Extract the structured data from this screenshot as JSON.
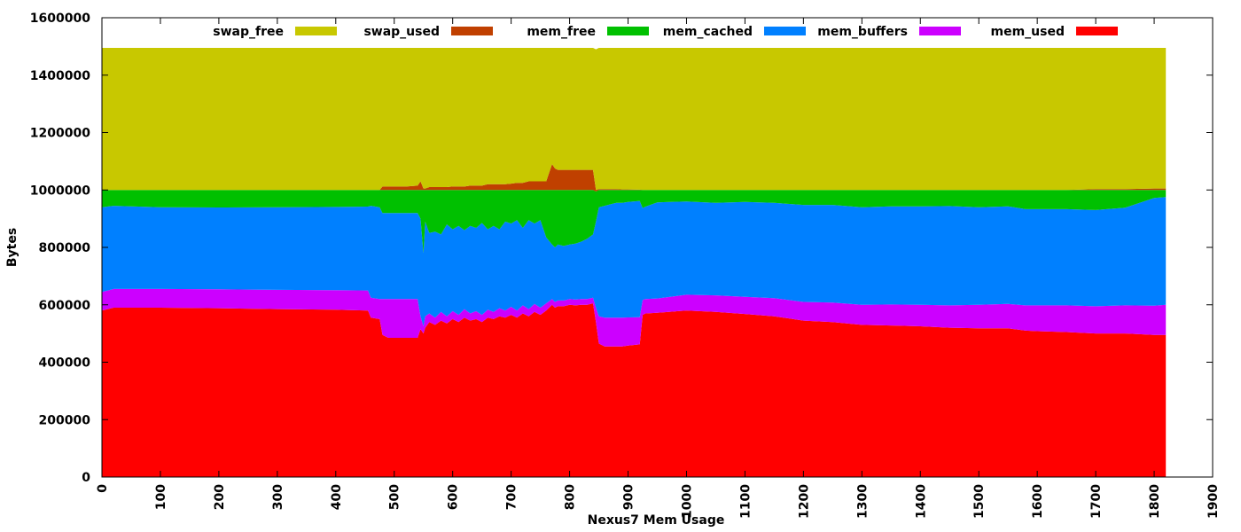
{
  "chart_data": {
    "type": "area",
    "stacked": true,
    "title": "",
    "xlabel": "Nexus7 Mem Usage",
    "ylabel": "Bytes",
    "xlim": [
      0,
      1900
    ],
    "ylim": [
      0,
      1600000
    ],
    "x_ticks": [
      0,
      100,
      200,
      300,
      400,
      500,
      600,
      700,
      800,
      900,
      1000,
      1100,
      1200,
      1300,
      1400,
      1500,
      1600,
      1700,
      1800,
      1900
    ],
    "y_ticks": [
      0,
      200000,
      400000,
      600000,
      800000,
      1000000,
      1200000,
      1400000,
      1600000
    ],
    "grid": false,
    "legend_position": "top",
    "x": [
      0,
      20,
      100,
      200,
      300,
      400,
      455,
      460,
      475,
      480,
      490,
      520,
      540,
      545,
      550,
      553,
      560,
      570,
      580,
      590,
      600,
      610,
      620,
      630,
      640,
      650,
      660,
      670,
      680,
      690,
      700,
      710,
      720,
      730,
      740,
      750,
      760,
      770,
      775,
      780,
      790,
      800,
      810,
      820,
      830,
      840,
      845,
      850,
      860,
      870,
      880,
      890,
      900,
      920,
      925,
      930,
      950,
      1000,
      1050,
      1100,
      1150,
      1200,
      1250,
      1300,
      1350,
      1400,
      1450,
      1500,
      1550,
      1580,
      1600,
      1650,
      1700,
      1750,
      1800,
      1820
    ],
    "series": [
      {
        "name": "mem_used",
        "color": "#ff0000",
        "values": [
          580000,
          590000,
          590000,
          588000,
          585000,
          583000,
          580000,
          555000,
          550000,
          495000,
          485000,
          485000,
          485000,
          515000,
          500000,
          520000,
          540000,
          530000,
          545000,
          535000,
          550000,
          540000,
          555000,
          545000,
          550000,
          540000,
          555000,
          550000,
          560000,
          555000,
          565000,
          555000,
          570000,
          560000,
          575000,
          565000,
          580000,
          600000,
          590000,
          595000,
          595000,
          600000,
          598000,
          600000,
          600000,
          605000,
          540000,
          465000,
          455000,
          455000,
          455000,
          455000,
          458000,
          462000,
          565000,
          570000,
          572000,
          580000,
          575000,
          568000,
          560000,
          545000,
          540000,
          530000,
          528000,
          525000,
          520000,
          518000,
          518000,
          510000,
          508000,
          505000,
          500000,
          500000,
          495000,
          495000
        ]
      },
      {
        "name": "mem_buffers",
        "color": "#cc00ff",
        "values": [
          65000,
          65000,
          65000,
          66000,
          67000,
          68000,
          70000,
          70000,
          70000,
          125000,
          135000,
          135000,
          135000,
          45000,
          25000,
          40000,
          30000,
          25000,
          30000,
          25000,
          28000,
          25000,
          30000,
          25000,
          28000,
          25000,
          28000,
          25000,
          28000,
          25000,
          28000,
          25000,
          28000,
          25000,
          28000,
          25000,
          25000,
          20000,
          20000,
          20000,
          20000,
          20000,
          20000,
          20000,
          20000,
          20000,
          50000,
          95000,
          100000,
          100000,
          100000,
          100000,
          98000,
          95000,
          52000,
          50000,
          50000,
          55000,
          58000,
          60000,
          63000,
          65000,
          68000,
          70000,
          73000,
          75000,
          78000,
          82000,
          85000,
          88000,
          90000,
          93000,
          95000,
          98000,
          102000,
          105000
        ]
      },
      {
        "name": "mem_cached",
        "color": "#0080ff",
        "values": [
          295000,
          290000,
          285000,
          285000,
          288000,
          290000,
          292000,
          320000,
          320000,
          300000,
          300000,
          300000,
          300000,
          340000,
          255000,
          330000,
          280000,
          300000,
          270000,
          320000,
          285000,
          310000,
          275000,
          305000,
          290000,
          320000,
          280000,
          300000,
          275000,
          310000,
          290000,
          315000,
          270000,
          310000,
          280000,
          305000,
          230000,
          190000,
          190000,
          195000,
          190000,
          190000,
          195000,
          200000,
          210000,
          220000,
          300000,
          380000,
          390000,
          395000,
          400000,
          400000,
          402000,
          405000,
          320000,
          322000,
          335000,
          325000,
          322000,
          330000,
          332000,
          338000,
          340000,
          340000,
          342000,
          343000,
          346000,
          340000,
          340000,
          335000,
          335000,
          335000,
          335000,
          340000,
          375000,
          375000
        ]
      },
      {
        "name": "mem_free",
        "color": "#00c000",
        "values": [
          60000,
          55000,
          60000,
          61000,
          60000,
          59000,
          58000,
          55000,
          60000,
          80000,
          80000,
          80000,
          80000,
          100000,
          220000,
          110000,
          150000,
          145000,
          155000,
          120000,
          137000,
          125000,
          140000,
          125000,
          132000,
          115000,
          137000,
          125000,
          137000,
          110000,
          117000,
          105000,
          132000,
          105000,
          117000,
          105000,
          165000,
          190000,
          200000,
          190000,
          195000,
          190000,
          187000,
          180000,
          170000,
          155000,
          105000,
          60000,
          55000,
          50000,
          45000,
          45000,
          42000,
          38000,
          63000,
          58000,
          43000,
          40000,
          45000,
          42000,
          45000,
          52000,
          52000,
          60000,
          57000,
          57000,
          56000,
          60000,
          57000,
          67000,
          67000,
          67000,
          70000,
          62000,
          28000,
          25000
        ]
      },
      {
        "name": "swap_used",
        "color": "#c04000",
        "values": [
          0,
          0,
          0,
          0,
          0,
          0,
          0,
          0,
          0,
          12000,
          12000,
          12000,
          15000,
          30000,
          5000,
          5000,
          10000,
          10000,
          10000,
          10000,
          12000,
          12000,
          12000,
          15000,
          15000,
          15000,
          20000,
          20000,
          20000,
          20000,
          22000,
          25000,
          25000,
          30000,
          30000,
          30000,
          30000,
          90000,
          75000,
          70000,
          70000,
          70000,
          70000,
          70000,
          70000,
          70000,
          5000,
          3000,
          3000,
          3000,
          3000,
          2000,
          2000,
          1000,
          0,
          0,
          0,
          0,
          0,
          0,
          0,
          0,
          0,
          0,
          0,
          0,
          0,
          0,
          0,
          0,
          0,
          0,
          3000,
          3000,
          5000,
          5000
        ]
      },
      {
        "name": "swap_free",
        "color": "#c8c800",
        "values": [
          495000,
          495000,
          495000,
          495000,
          495000,
          495000,
          495000,
          495000,
          495000,
          483000,
          483000,
          483000,
          480000,
          465000,
          490000,
          490000,
          485000,
          485000,
          485000,
          485000,
          483000,
          483000,
          483000,
          480000,
          480000,
          480000,
          475000,
          475000,
          475000,
          475000,
          473000,
          470000,
          470000,
          465000,
          465000,
          465000,
          465000,
          405000,
          420000,
          425000,
          425000,
          425000,
          425000,
          425000,
          425000,
          425000,
          490000,
          492000,
          492000,
          492000,
          492000,
          493000,
          493000,
          494000,
          495000,
          495000,
          495000,
          495000,
          495000,
          495000,
          495000,
          495000,
          495000,
          495000,
          495000,
          495000,
          495000,
          495000,
          495000,
          495000,
          495000,
          495000,
          492000,
          492000,
          490000,
          490000
        ]
      }
    ],
    "legend": [
      {
        "label": "swap_free",
        "color": "#c8c800"
      },
      {
        "label": "swap_used",
        "color": "#c04000"
      },
      {
        "label": "mem_free",
        "color": "#00c000"
      },
      {
        "label": "mem_cached",
        "color": "#0080ff"
      },
      {
        "label": "mem_buffers",
        "color": "#cc00ff"
      },
      {
        "label": "mem_used",
        "color": "#ff0000"
      }
    ]
  }
}
